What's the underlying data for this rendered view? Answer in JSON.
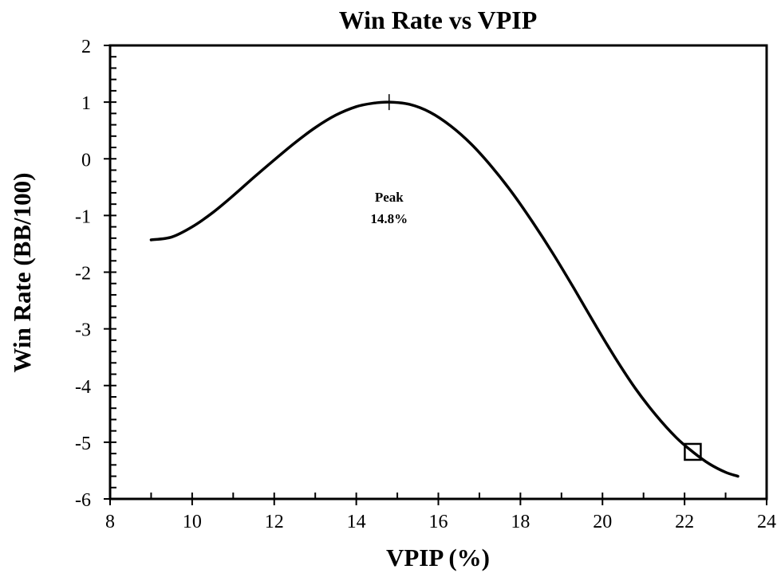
{
  "chart_data": {
    "type": "line",
    "title": "Win Rate vs VPIP",
    "xlabel": "VPIP (%)",
    "ylabel": "Win Rate (BB/100)",
    "xlim": [
      8,
      24
    ],
    "ylim": [
      -6,
      2
    ],
    "xticks": [
      8,
      10,
      12,
      14,
      16,
      18,
      20,
      22,
      24
    ],
    "yticks": [
      -6,
      -5,
      -4,
      -3,
      -2,
      -1,
      0,
      1,
      2
    ],
    "grid": false,
    "series": [
      {
        "name": "Win Rate",
        "x": [
          9,
          9.5,
          10,
          10.5,
          11,
          11.5,
          12,
          12.5,
          13,
          13.5,
          14,
          14.4,
          14.8,
          15.3,
          15.8,
          16.3,
          16.8,
          17.3,
          17.8,
          18.3,
          18.8,
          19.3,
          19.8,
          20.3,
          20.8,
          21.3,
          21.8,
          22.2,
          22.6,
          23.0,
          23.3
        ],
        "y": [
          -1.43,
          -1.38,
          -1.2,
          -0.95,
          -0.65,
          -0.33,
          -0.02,
          0.28,
          0.55,
          0.77,
          0.92,
          0.98,
          1.0,
          0.96,
          0.82,
          0.58,
          0.26,
          -0.14,
          -0.6,
          -1.12,
          -1.68,
          -2.28,
          -2.9,
          -3.5,
          -4.05,
          -4.52,
          -4.92,
          -5.17,
          -5.38,
          -5.53,
          -5.6
        ]
      }
    ],
    "markers": [
      {
        "type": "plus",
        "x": 14.8,
        "y": 1.0
      },
      {
        "type": "square",
        "x": 22.2,
        "y": -5.17
      }
    ],
    "annotations": [
      {
        "text_lines": [
          "Peak",
          "14.8%"
        ],
        "x": 14.8,
        "y": -0.8
      }
    ]
  }
}
